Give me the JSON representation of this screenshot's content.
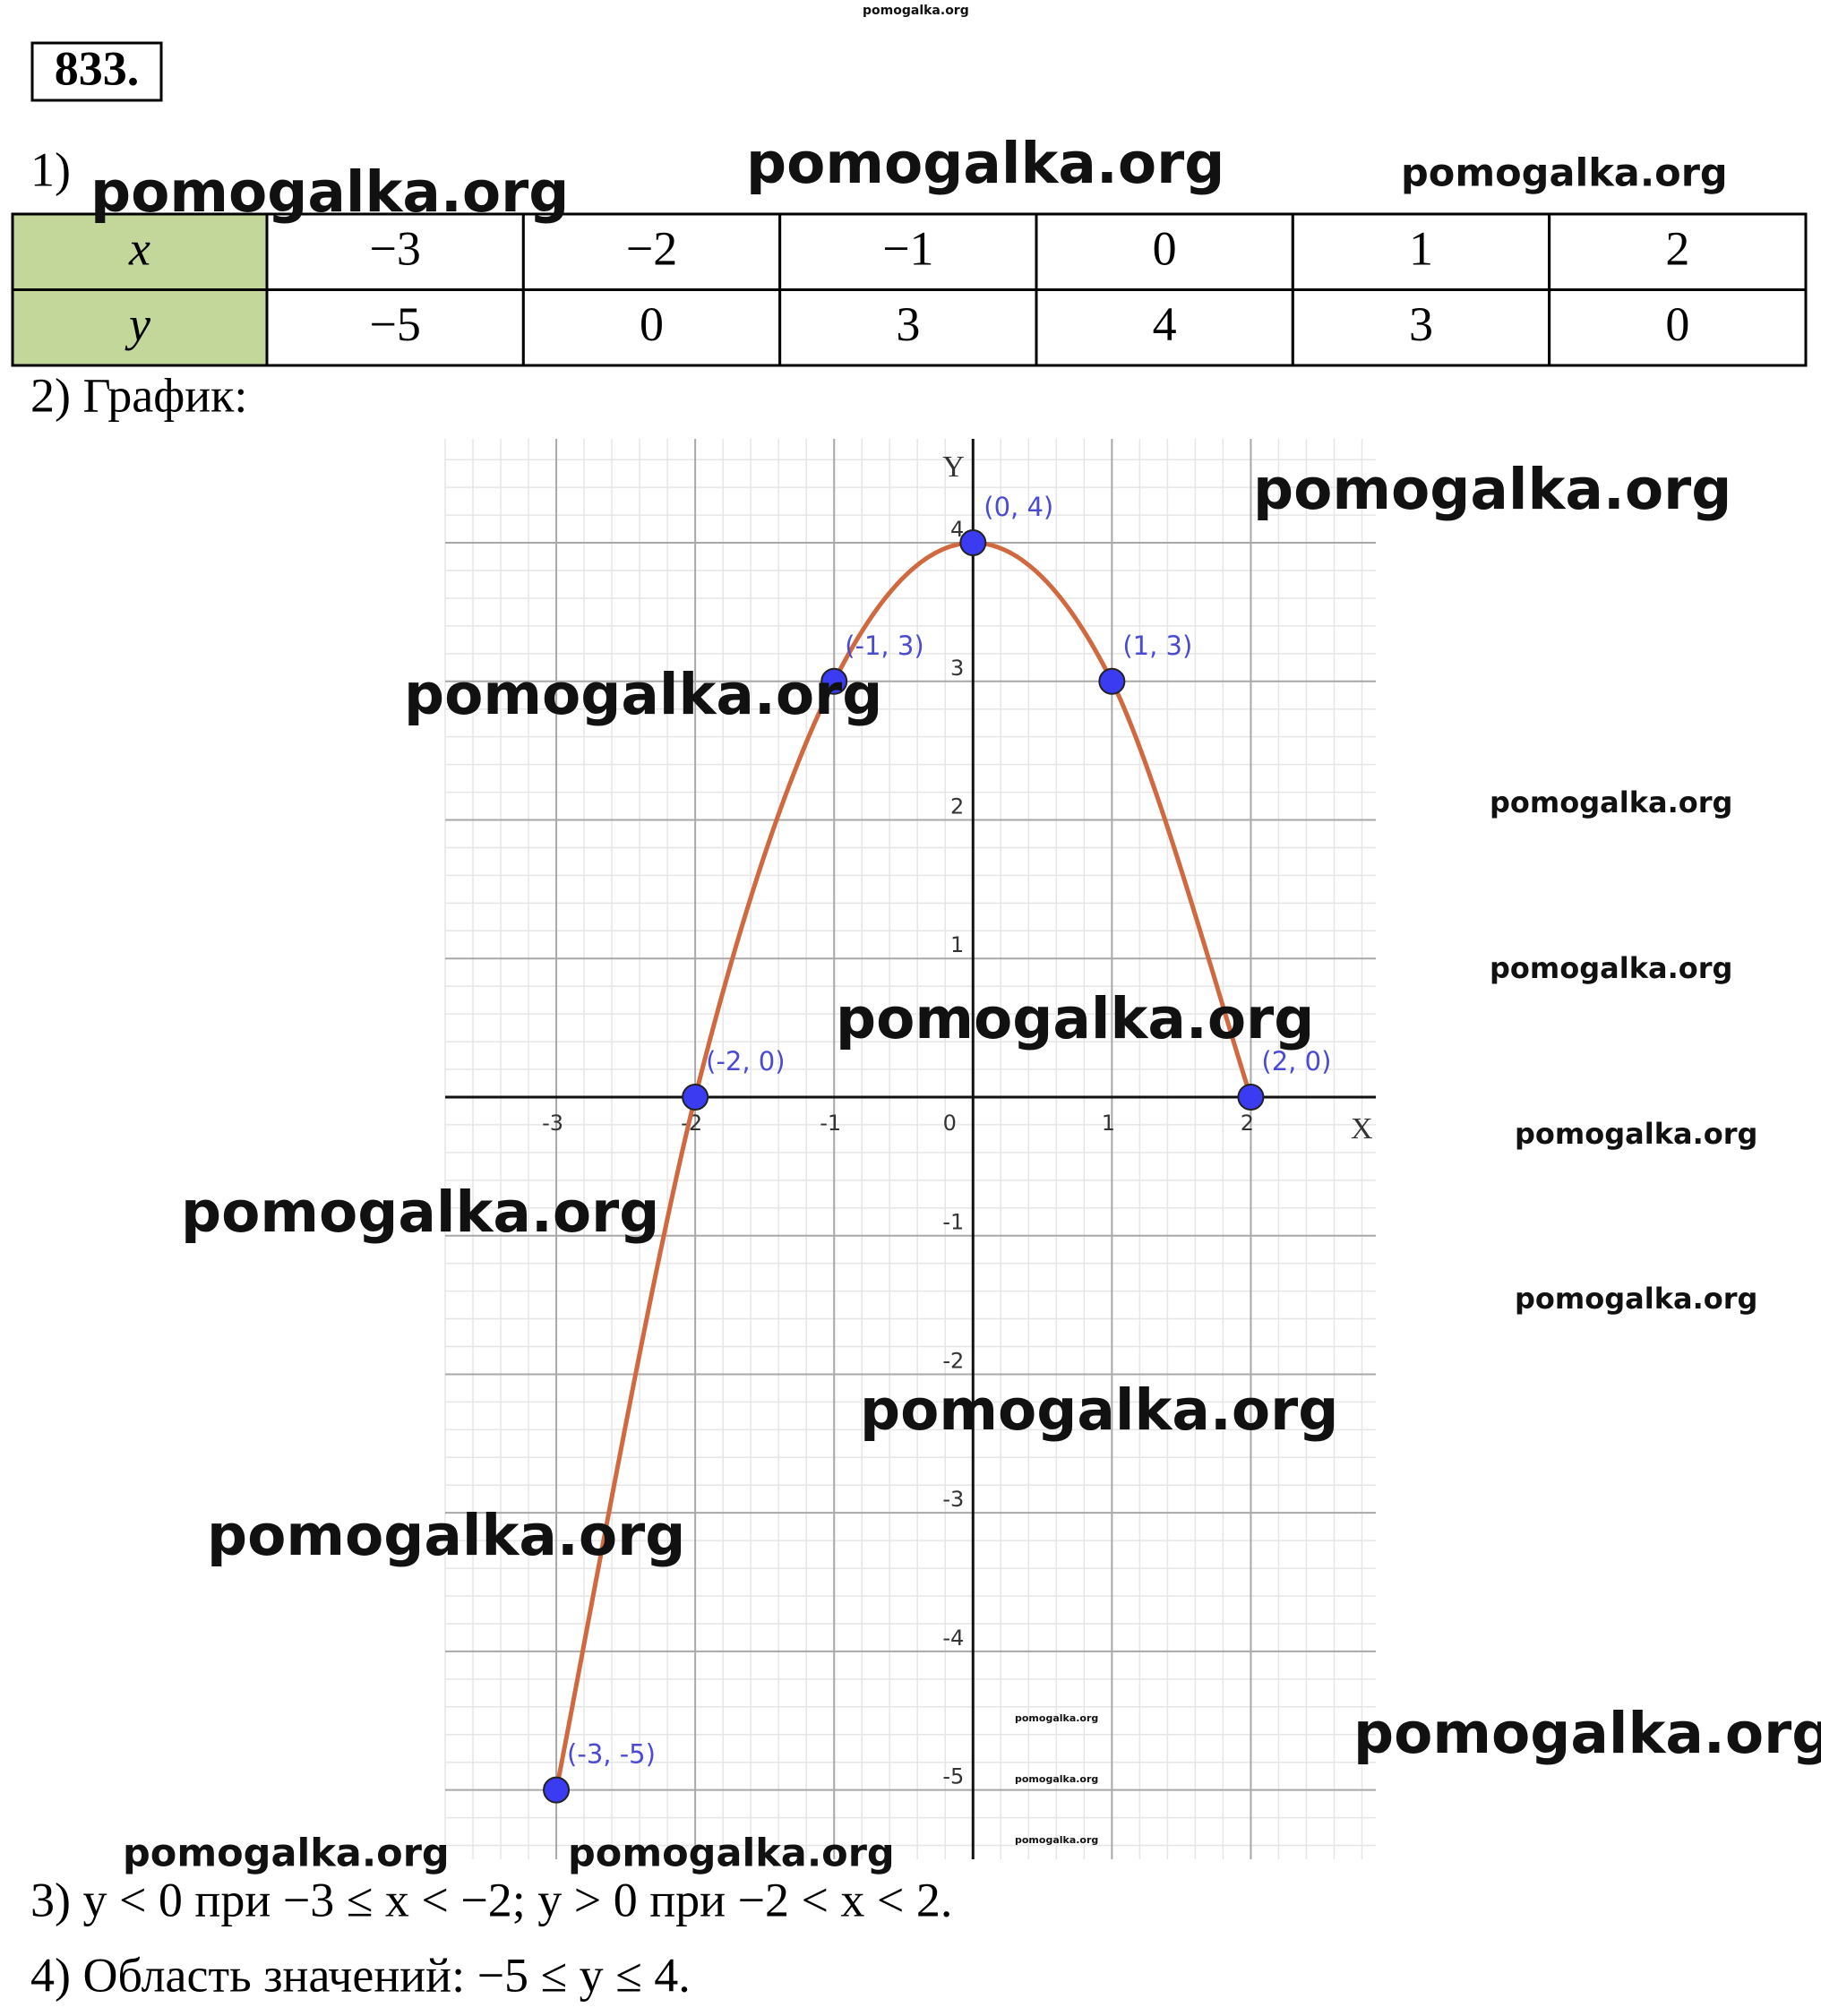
{
  "problem_number": "833.",
  "part1_label": "1)",
  "table": {
    "rows": [
      [
        "x",
        "−3",
        "−2",
        "−1",
        "0",
        "1",
        "2"
      ],
      [
        "y",
        "−5",
        "0",
        "3",
        "4",
        "3",
        "0"
      ]
    ]
  },
  "part2_label": "2) График:",
  "chart_data": {
    "type": "line",
    "x": [
      -3,
      -2,
      -1,
      0,
      1,
      2
    ],
    "values": [
      -5,
      0,
      3,
      4,
      3,
      0
    ],
    "annotations": [
      "(-3, -5)",
      "(-2, 0)",
      "(-1, 3)",
      "(0, 4)",
      "(1, 3)",
      "(2, 0)"
    ],
    "color": "#d0693f",
    "marker_color": "#3b3bf2",
    "x_label": "X",
    "y_label": "Y",
    "xlim": [
      -3.8,
      2.9
    ],
    "ylim": [
      -5.5,
      4.75
    ],
    "xticks": [
      -3,
      -2,
      -1,
      0,
      1,
      2
    ],
    "yticks": [
      -5,
      -4,
      -3,
      -2,
      -1,
      1,
      2,
      3,
      4
    ],
    "grid": true
  },
  "part3": "3) y < 0 при −3 ≤ x < −2; y > 0 при −2 < x < 2.",
  "part4": "4) Область значений: −5 ≤ y ≤ 4.",
  "watermarks": [
    "pomogalka.org",
    "pomogalka.org",
    "pomogalka.org",
    "pomogalka.org",
    "pomogalka.org",
    "pomogalka.org",
    "pomogalka.org",
    "pomogalka.org",
    "pomogalka.org",
    "pomogalka.org",
    "pomogalka.org",
    "pomogalka.org",
    "pomogalka.org",
    "pomogalka.org",
    "pomogalka.org",
    "pomogalka.org",
    "pomogalka.org",
    "pomogalka.org",
    "pomogalka.org",
    "pomogalka.org"
  ]
}
